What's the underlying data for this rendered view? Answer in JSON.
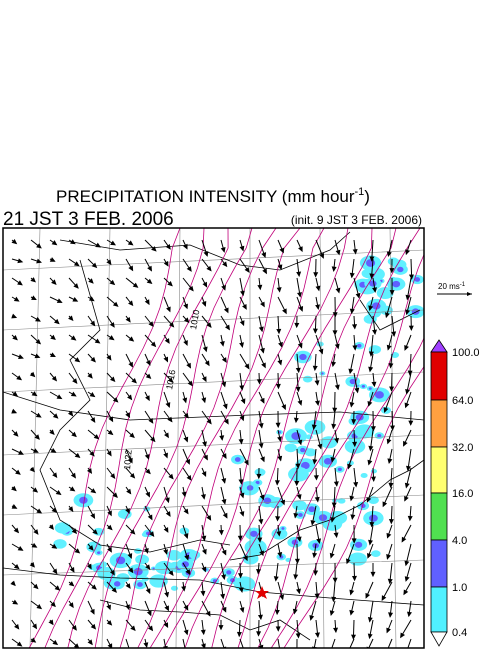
{
  "header": {
    "title": {
      "text": "PRECIPITATION INTENSITY (mm hour",
      "exponent": "-1",
      "close": ")"
    },
    "valid_time": "21 JST 3 FEB. 2006",
    "init_time": "(init. 9 JST 3 FEB. 2006)"
  },
  "vector_scale": {
    "text": "20 ms",
    "exponent": "-1"
  },
  "contour_labels": [
    "1010",
    "1016",
    "1022"
  ],
  "legend": {
    "levels": [
      "100.0",
      "64.0",
      "32.0",
      "16.0",
      "4.0",
      "1.0",
      "0.4"
    ]
  }
}
